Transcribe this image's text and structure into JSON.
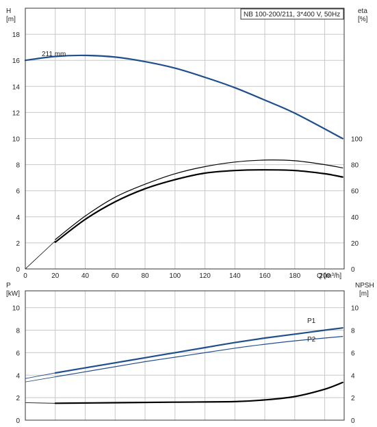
{
  "chart_data": [
    {
      "type": "line",
      "title": "NB 100-200/211, 3*400 V, 50Hz",
      "xlabel": "Q [m³/h]",
      "ylabel_left": [
        "H",
        "[m]"
      ],
      "ylabel_right": [
        "eta",
        "[%]"
      ],
      "xlim": [
        0,
        213
      ],
      "x_ticks": [
        "0",
        "20",
        "40",
        "60",
        "80",
        "100",
        "120",
        "140",
        "160",
        "180",
        "200"
      ],
      "ylim_left": [
        0,
        20
      ],
      "y_ticks_left": [
        "0",
        "2",
        "4",
        "6",
        "8",
        "10",
        "12",
        "14",
        "16",
        "18"
      ],
      "ylim_right": [
        0,
        200
      ],
      "y_ticks_right": [
        "0",
        "20",
        "40",
        "60",
        "80",
        "100"
      ],
      "grid": true,
      "colors": {
        "head": "#1f4e8c",
        "eta": "#000000",
        "grid": "#c8c8c8",
        "axis": "#333333"
      },
      "annotations": [
        "211 mm"
      ],
      "series": [
        {
          "axis": "left",
          "role": "head",
          "x": [
            0,
            20,
            40,
            60,
            80,
            100,
            120,
            140,
            160,
            180,
            212
          ],
          "y": [
            16.0,
            16.3,
            16.38,
            16.25,
            15.9,
            15.4,
            14.7,
            13.9,
            12.95,
            11.95,
            10.0
          ]
        },
        {
          "axis": "left",
          "role": "head-extension",
          "x": [
            0,
            20
          ],
          "y": [
            16.0,
            16.3
          ]
        },
        {
          "axis": "right",
          "role": "eta-upper",
          "x": [
            20,
            40,
            60,
            80,
            100,
            120,
            140,
            160,
            180,
            200,
            212
          ],
          "y": [
            22.5,
            40.5,
            55,
            65,
            73,
            78.5,
            82,
            83.5,
            83,
            80,
            77.5
          ]
        },
        {
          "axis": "right",
          "role": "eta-lower",
          "x": [
            20,
            40,
            60,
            80,
            100,
            120,
            140,
            160,
            180,
            200,
            212
          ],
          "y": [
            20.5,
            38,
            51.5,
            61.5,
            68.5,
            73.5,
            75.5,
            76,
            75.5,
            73,
            70.5
          ]
        },
        {
          "axis": "right",
          "role": "eta-extension",
          "x": [
            0,
            20
          ],
          "y": [
            0,
            21.5
          ]
        }
      ]
    },
    {
      "type": "line",
      "xlabel": "",
      "ylabel_left": [
        "P",
        "[kW]"
      ],
      "ylabel_right": [
        "NPSH",
        "[m]"
      ],
      "xlim": [
        0,
        213
      ],
      "ylim_left": [
        0,
        11.5
      ],
      "y_ticks_left": [
        "0",
        "2",
        "4",
        "6",
        "8",
        "10"
      ],
      "ylim_right": [
        0,
        11.5
      ],
      "y_ticks_right": [
        "0",
        "2",
        "4",
        "6",
        "8",
        "10"
      ],
      "grid": true,
      "colors": {
        "power": "#1f4e8c",
        "npsh": "#000000",
        "grid": "#c8c8c8",
        "axis": "#333333"
      },
      "series": [
        {
          "axis": "left",
          "name": "P1",
          "role": "power-bold",
          "x": [
            20,
            40,
            60,
            80,
            100,
            120,
            140,
            160,
            180,
            200,
            212
          ],
          "y": [
            4.2,
            4.65,
            5.1,
            5.55,
            6.0,
            6.45,
            6.9,
            7.3,
            7.65,
            8.0,
            8.2
          ]
        },
        {
          "axis": "left",
          "name": "P2",
          "role": "power-thin",
          "x": [
            20,
            40,
            60,
            80,
            100,
            120,
            140,
            160,
            180,
            200,
            212
          ],
          "y": [
            3.85,
            4.3,
            4.75,
            5.2,
            5.6,
            6.0,
            6.4,
            6.75,
            7.05,
            7.3,
            7.45
          ]
        },
        {
          "axis": "left",
          "role": "p1-extension",
          "x": [
            0,
            20
          ],
          "y": [
            3.7,
            4.2
          ]
        },
        {
          "axis": "left",
          "role": "p2-extension",
          "x": [
            0,
            20
          ],
          "y": [
            3.4,
            3.85
          ]
        },
        {
          "axis": "right",
          "role": "npsh",
          "x": [
            20,
            60,
            100,
            140,
            160,
            180,
            200,
            212
          ],
          "y": [
            1.5,
            1.55,
            1.6,
            1.65,
            1.8,
            2.1,
            2.75,
            3.35
          ]
        },
        {
          "axis": "right",
          "role": "npsh-extension",
          "x": [
            0,
            20
          ],
          "y": [
            1.55,
            1.5
          ]
        }
      ]
    }
  ]
}
